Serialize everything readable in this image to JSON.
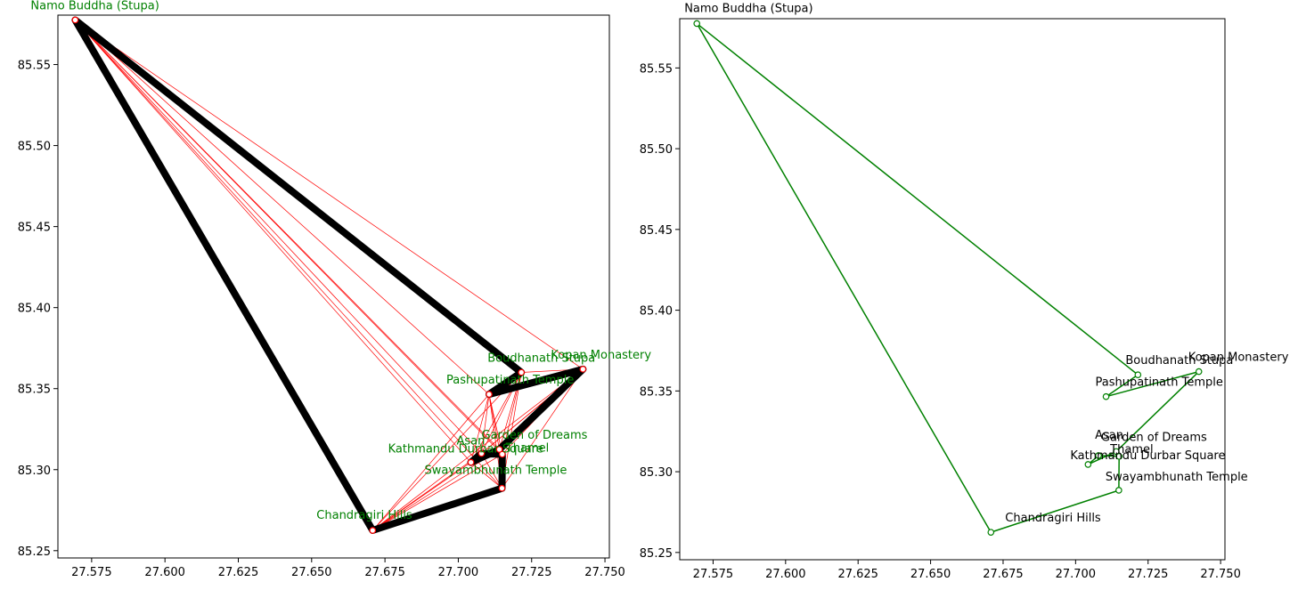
{
  "chart_data": [
    {
      "type": "scatter",
      "description": "All-pairs graph of Kathmandu sites with the tour path highlighted",
      "xlim": [
        27.5635,
        27.7515
      ],
      "ylim": [
        85.2455,
        85.5805
      ],
      "xticks": [
        27.575,
        27.6,
        27.625,
        27.65,
        27.675,
        27.7,
        27.725,
        27.75
      ],
      "xtick_labels": [
        "27.575",
        "27.600",
        "27.625",
        "27.650",
        "27.675",
        "27.700",
        "27.725",
        "27.750"
      ],
      "yticks": [
        85.25,
        85.3,
        85.35,
        85.4,
        85.45,
        85.5,
        85.55
      ],
      "ytick_labels": [
        "85.25",
        "85.30",
        "85.35",
        "85.40",
        "85.45",
        "85.50",
        "85.55"
      ],
      "label_color": "#008000",
      "edge_color": "#ff0000",
      "path_color": "#000000",
      "nodes": [
        {
          "name": "Namo Buddha (Stupa)",
          "x": 27.5694,
          "y": 85.5775
        },
        {
          "name": "Boudhanath Stupa",
          "x": 27.7215,
          "y": 85.36
        },
        {
          "name": "Kopan Monastery",
          "x": 27.7425,
          "y": 85.362
        },
        {
          "name": "Pashupatinath Temple",
          "x": 27.7105,
          "y": 85.3465
        },
        {
          "name": "Garden of Dreams",
          "x": 27.714,
          "y": 85.3125
        },
        {
          "name": "Asan",
          "x": 27.7079,
          "y": 85.31
        },
        {
          "name": "Thamel",
          "x": 27.715,
          "y": 85.3095
        },
        {
          "name": "Kathmandu Durbar Square",
          "x": 27.7043,
          "y": 85.3045
        },
        {
          "name": "Swayambhunath Temple",
          "x": 27.7149,
          "y": 85.2885
        },
        {
          "name": "Chandragiri Hills",
          "x": 27.6708,
          "y": 85.2625
        }
      ],
      "path": [
        "Namo Buddha (Stupa)",
        "Boudhanath Stupa",
        "Pashupatinath Temple",
        "Kopan Monastery",
        "Garden of Dreams",
        "Kathmandu Durbar Square",
        "Asan",
        "Thamel",
        "Swayambhunath Temple",
        "Chandragiri Hills",
        "Namo Buddha (Stupa)"
      ]
    },
    {
      "type": "line",
      "description": "Optimized tour through Kathmandu sites",
      "xlim": [
        27.5635,
        27.7515
      ],
      "ylim": [
        85.2455,
        85.5805
      ],
      "xticks": [
        27.575,
        27.6,
        27.625,
        27.65,
        27.675,
        27.7,
        27.725,
        27.75
      ],
      "xtick_labels": [
        "27.575",
        "27.600",
        "27.625",
        "27.650",
        "27.675",
        "27.700",
        "27.725",
        "27.750"
      ],
      "yticks": [
        85.25,
        85.3,
        85.35,
        85.4,
        85.45,
        85.5,
        85.55
      ],
      "ytick_labels": [
        "85.25",
        "85.30",
        "85.35",
        "85.40",
        "85.45",
        "85.50",
        "85.55"
      ],
      "label_color": "#000000",
      "line_color": "#008000",
      "nodes": [
        {
          "name": "Namo Buddha (Stupa)",
          "x": 27.5694,
          "y": 85.5775
        },
        {
          "name": "Boudhanath Stupa",
          "x": 27.7215,
          "y": 85.36
        },
        {
          "name": "Kopan Monastery",
          "x": 27.7425,
          "y": 85.362
        },
        {
          "name": "Pashupatinath Temple",
          "x": 27.7105,
          "y": 85.3465
        },
        {
          "name": "Garden of Dreams",
          "x": 27.714,
          "y": 85.3125
        },
        {
          "name": "Asan",
          "x": 27.7079,
          "y": 85.31
        },
        {
          "name": "Thamel",
          "x": 27.715,
          "y": 85.3095
        },
        {
          "name": "Kathmandu Durbar Square",
          "x": 27.7043,
          "y": 85.3045
        },
        {
          "name": "Swayambhunath Temple",
          "x": 27.7149,
          "y": 85.2885
        },
        {
          "name": "Chandragiri Hills",
          "x": 27.6708,
          "y": 85.2625
        }
      ],
      "path": [
        "Namo Buddha (Stupa)",
        "Boudhanath Stupa",
        "Pashupatinath Temple",
        "Kopan Monastery",
        "Garden of Dreams",
        "Kathmandu Durbar Square",
        "Asan",
        "Thamel",
        "Swayambhunath Temple",
        "Chandragiri Hills",
        "Namo Buddha (Stupa)"
      ]
    }
  ]
}
